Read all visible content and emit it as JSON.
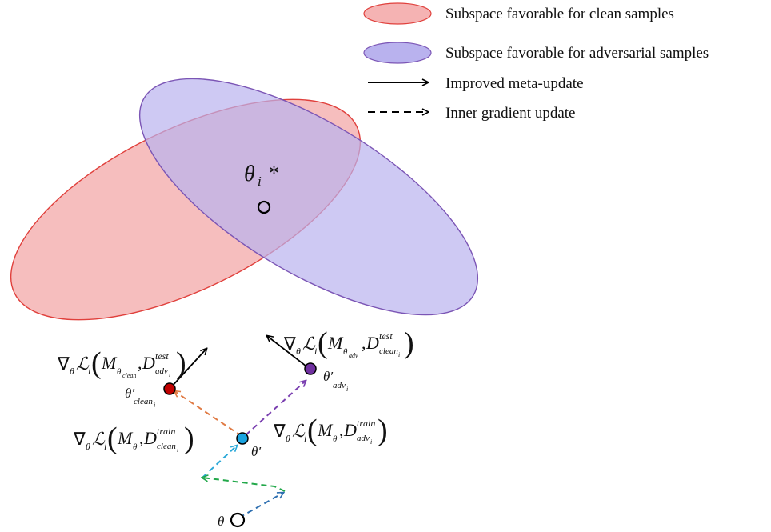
{
  "legend": {
    "clean_label": "Subspace favorable for clean samples",
    "adv_label": "Subspace favorable for adversarial samples",
    "meta_label": "Improved meta-update",
    "inner_label": "Inner gradient update"
  },
  "colors": {
    "clean_fill": "#f5b3b3",
    "clean_stroke": "#e0403c",
    "adv_fill": "#b9b2ee",
    "adv_stroke": "#7b55b5",
    "clean_point": "#c00000",
    "adv_point": "#7030a0",
    "theta_prime_point": "#1aa3e0",
    "orange_arrow": "#e07b45",
    "purple_arrow": "#7a3fb0",
    "cyan_arrow": "#2aa8d8",
    "green_arrow": "#22a84a",
    "blue_arrow": "#2e6fb0"
  },
  "labels": {
    "theta_star": "θ",
    "theta_star_sub": "i",
    "theta_star_mark": "*",
    "theta": "θ",
    "theta_prime": "θ′",
    "theta_clean": "θ′",
    "theta_clean_sub": "clean",
    "theta_clean_subsub": "i",
    "theta_adv": "θ′",
    "theta_adv_sub": "adv",
    "theta_adv_subsub": "i"
  },
  "formulas": {
    "nabla": "∇",
    "theta_sub": "θ",
    "loss": "ℒ",
    "i": "i",
    "M": "M",
    "D": "D",
    "comma": ",",
    "test": "test",
    "train": "train",
    "clean": "clean",
    "adv": "adv",
    "theta": "θ",
    "lparen": "(",
    "rparen": ")"
  }
}
